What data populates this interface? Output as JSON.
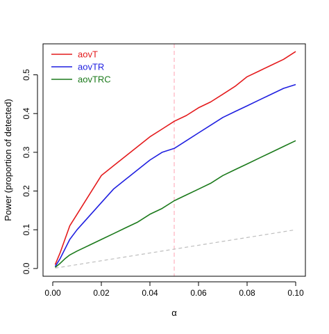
{
  "chart_data": {
    "type": "line",
    "title": "",
    "xlabel": "α",
    "ylabel": "Power (proportion of detected)",
    "xlim": [
      0.0,
      0.1
    ],
    "ylim": [
      0.0,
      0.56
    ],
    "x_ticks": [
      0.0,
      0.02,
      0.04,
      0.06,
      0.08,
      0.1
    ],
    "x_tick_labels": [
      "0.00",
      "0.02",
      "0.04",
      "0.06",
      "0.08",
      "0.10"
    ],
    "y_ticks": [
      0.0,
      0.1,
      0.2,
      0.3,
      0.4,
      0.5
    ],
    "y_tick_labels": [
      "0.0",
      "0.1",
      "0.2",
      "0.3",
      "0.4",
      "0.5"
    ],
    "grid": false,
    "legend_position": "top-left",
    "series": [
      {
        "name": "aovT",
        "color": "#e41a1c",
        "x": [
          0.001,
          0.003,
          0.005,
          0.007,
          0.01,
          0.015,
          0.02,
          0.025,
          0.03,
          0.035,
          0.04,
          0.045,
          0.05,
          0.055,
          0.06,
          0.065,
          0.07,
          0.075,
          0.08,
          0.085,
          0.09,
          0.095,
          0.1
        ],
        "y": [
          0.01,
          0.04,
          0.075,
          0.11,
          0.14,
          0.19,
          0.24,
          0.265,
          0.29,
          0.315,
          0.34,
          0.36,
          0.38,
          0.395,
          0.415,
          0.43,
          0.45,
          0.47,
          0.495,
          0.51,
          0.525,
          0.54,
          0.56
        ]
      },
      {
        "name": "aovTR",
        "color": "#1f1fe0",
        "x": [
          0.001,
          0.003,
          0.005,
          0.007,
          0.01,
          0.015,
          0.02,
          0.025,
          0.03,
          0.035,
          0.04,
          0.045,
          0.05,
          0.055,
          0.06,
          0.065,
          0.07,
          0.075,
          0.08,
          0.085,
          0.09,
          0.095,
          0.1
        ],
        "y": [
          0.005,
          0.025,
          0.05,
          0.075,
          0.1,
          0.135,
          0.17,
          0.205,
          0.23,
          0.255,
          0.28,
          0.3,
          0.31,
          0.33,
          0.35,
          0.37,
          0.39,
          0.405,
          0.42,
          0.435,
          0.45,
          0.465,
          0.475
        ]
      },
      {
        "name": "aovTRC",
        "color": "#1b7a1b",
        "x": [
          0.001,
          0.003,
          0.005,
          0.007,
          0.01,
          0.015,
          0.02,
          0.025,
          0.03,
          0.035,
          0.04,
          0.045,
          0.05,
          0.055,
          0.06,
          0.065,
          0.07,
          0.075,
          0.08,
          0.085,
          0.09,
          0.095,
          0.1
        ],
        "y": [
          0.003,
          0.013,
          0.025,
          0.035,
          0.045,
          0.06,
          0.075,
          0.09,
          0.105,
          0.12,
          0.14,
          0.155,
          0.175,
          0.19,
          0.205,
          0.22,
          0.24,
          0.255,
          0.27,
          0.285,
          0.3,
          0.315,
          0.33
        ]
      }
    ],
    "reference_lines": [
      {
        "kind": "vertical",
        "x": 0.05,
        "color": "#ffc0cb",
        "style": "dashed"
      },
      {
        "kind": "diagonal",
        "x": [
          0.001,
          0.1
        ],
        "y": [
          0.001,
          0.1
        ],
        "color": "#bdbdbd",
        "style": "dashed"
      }
    ]
  }
}
